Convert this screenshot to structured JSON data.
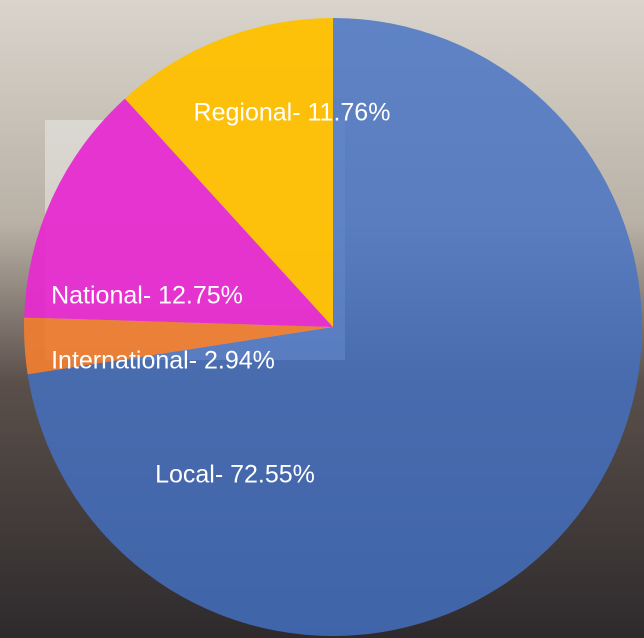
{
  "chart_data": {
    "type": "pie",
    "values": [
      72.55,
      2.94,
      12.75,
      11.76
    ],
    "value_labels": [
      "Local- 72.55%",
      "International- 2.94%",
      "National- 12.75%",
      "Regional- 11.76%"
    ],
    "colors": [
      "#4472c4",
      "#ed7d31",
      "#e62bcf",
      "#ffc000"
    ]
  }
}
